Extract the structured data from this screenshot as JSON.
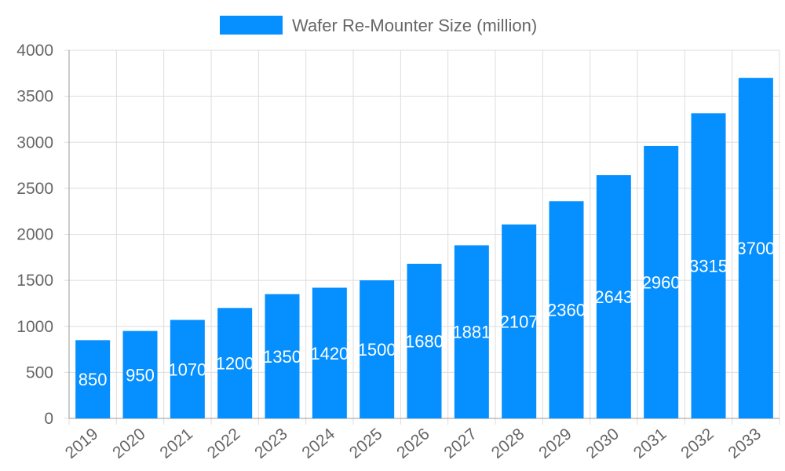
{
  "chart_data": {
    "type": "bar",
    "title": "",
    "xlabel": "",
    "ylabel": "",
    "categories": [
      "2019",
      "2020",
      "2021",
      "2022",
      "2023",
      "2024",
      "2025",
      "2026",
      "2027",
      "2028",
      "2029",
      "2030",
      "2031",
      "2032",
      "2033"
    ],
    "series": [
      {
        "name": "Wafer Re-Mounter Size (million)",
        "values": [
          850,
          950,
          1070,
          1200,
          1350,
          1420,
          1500,
          1680,
          1881,
          2107,
          2360,
          2643,
          2960,
          3315,
          3700
        ],
        "color": "#068FFE"
      }
    ],
    "ylim": [
      0,
      4000
    ],
    "yticks": [
      0,
      500,
      1000,
      1500,
      2000,
      2500,
      3000,
      3500,
      4000
    ],
    "grid": true,
    "legend": "top",
    "data_labels": "inside-center"
  }
}
